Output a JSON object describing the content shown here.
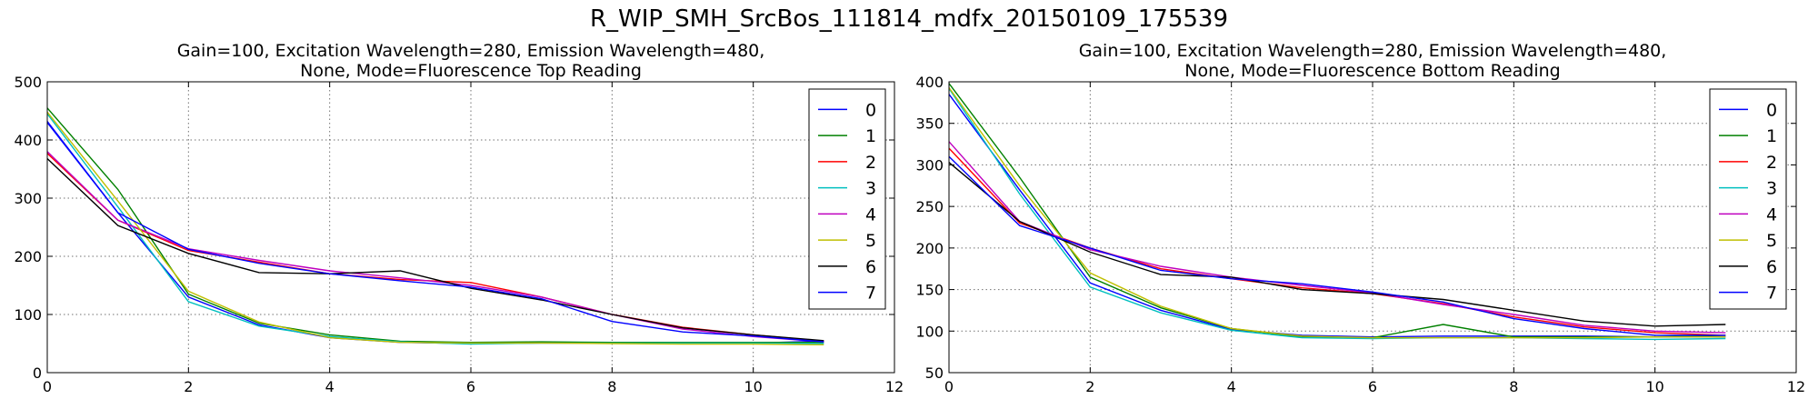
{
  "figure": {
    "suptitle": "R_WIP_SMH_SrcBos_111814_mdfx_20150109_175539"
  },
  "colors": [
    "#0000ff",
    "#008000",
    "#ff0000",
    "#00bfbf",
    "#bf00bf",
    "#bfbf00",
    "#000000",
    "#0000ff"
  ],
  "chart_data": [
    {
      "type": "line",
      "title": [
        "Gain=100, Excitation Wavelength=280, Emission Wavelength=480,",
        "None, Mode=Fluorescence Top Reading"
      ],
      "xlabel": "",
      "ylabel": "",
      "xlim": [
        0,
        12
      ],
      "ylim": [
        0,
        500
      ],
      "xticks": [
        0,
        2,
        4,
        6,
        8,
        10,
        12
      ],
      "yticks": [
        0,
        100,
        200,
        300,
        400,
        500
      ],
      "grid": true,
      "legend": "top-right",
      "x": [
        0,
        1,
        2,
        3,
        4,
        5,
        6,
        7,
        8,
        9,
        10,
        11
      ],
      "series": [
        {
          "name": "0",
          "values": [
            432,
            275,
            130,
            82,
            60,
            52,
            50,
            51,
            51,
            51,
            51,
            54
          ]
        },
        {
          "name": "1",
          "values": [
            455,
            315,
            135,
            85,
            65,
            54,
            52,
            53,
            52,
            52,
            52,
            52
          ]
        },
        {
          "name": "2",
          "values": [
            377,
            262,
            210,
            190,
            170,
            160,
            155,
            130,
            100,
            78,
            65,
            54
          ]
        },
        {
          "name": "3",
          "values": [
            445,
            285,
            122,
            80,
            62,
            53,
            49,
            51,
            51,
            51,
            51,
            50
          ]
        },
        {
          "name": "4",
          "values": [
            380,
            262,
            213,
            193,
            175,
            163,
            150,
            130,
            100,
            75,
            62,
            53
          ]
        },
        {
          "name": "5",
          "values": [
            448,
            295,
            140,
            87,
            60,
            52,
            51,
            51,
            50,
            49,
            49,
            48
          ]
        },
        {
          "name": "6",
          "values": [
            368,
            253,
            205,
            172,
            170,
            175,
            145,
            125,
            100,
            77,
            65,
            55
          ]
        },
        {
          "name": "7",
          "values": [
            430,
            275,
            212,
            188,
            170,
            158,
            147,
            127,
            88,
            70,
            63,
            53
          ]
        }
      ]
    },
    {
      "type": "line",
      "title": [
        "Gain=100, Excitation Wavelength=280, Emission Wavelength=480,",
        "None, Mode=Fluorescence Bottom Reading"
      ],
      "xlabel": "",
      "ylabel": "",
      "xlim": [
        0,
        12
      ],
      "ylim": [
        50,
        400
      ],
      "xticks": [
        0,
        2,
        4,
        6,
        8,
        10,
        12
      ],
      "yticks": [
        50,
        100,
        150,
        200,
        250,
        300,
        350,
        400
      ],
      "grid": true,
      "legend": "top-right",
      "x": [
        0,
        1,
        2,
        3,
        4,
        5,
        6,
        7,
        8,
        9,
        10,
        11
      ],
      "series": [
        {
          "name": "0",
          "values": [
            385,
            270,
            158,
            125,
            102,
            95,
            93,
            94,
            94,
            94,
            93,
            93
          ]
        },
        {
          "name": "1",
          "values": [
            398,
            285,
            165,
            128,
            103,
            93,
            92,
            108,
            93,
            93,
            93,
            95
          ]
        },
        {
          "name": "2",
          "values": [
            320,
            230,
            200,
            175,
            163,
            152,
            145,
            133,
            117,
            105,
            98,
            95
          ]
        },
        {
          "name": "3",
          "values": [
            392,
            265,
            153,
            122,
            101,
            92,
            91,
            92,
            92,
            91,
            90,
            91
          ]
        },
        {
          "name": "4",
          "values": [
            328,
            232,
            198,
            178,
            165,
            155,
            146,
            132,
            120,
            107,
            100,
            98
          ]
        },
        {
          "name": "5",
          "values": [
            393,
            275,
            170,
            130,
            103,
            94,
            92,
            92,
            92,
            92,
            93,
            93
          ]
        },
        {
          "name": "6",
          "values": [
            303,
            232,
            195,
            168,
            165,
            150,
            145,
            138,
            125,
            112,
            106,
            108
          ]
        },
        {
          "name": "7",
          "values": [
            310,
            227,
            200,
            173,
            163,
            157,
            147,
            135,
            115,
            103,
            95,
            95
          ]
        }
      ]
    }
  ]
}
